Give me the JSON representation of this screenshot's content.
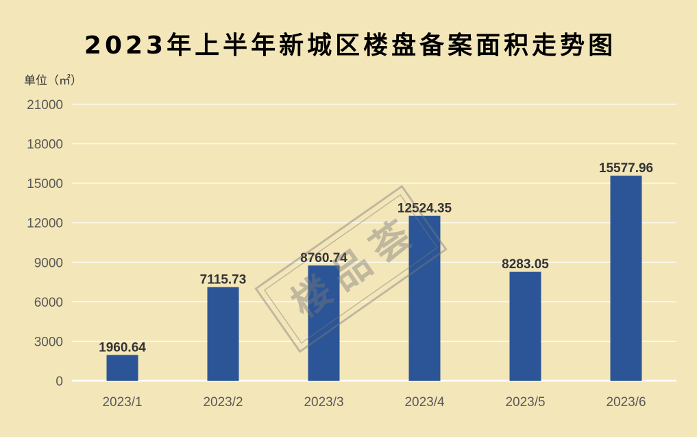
{
  "watermark": {
    "text": "楼品荟"
  },
  "colors": {
    "background": "#F3E6B9",
    "bar": "#2B5597",
    "gridline": "#FFFFFF",
    "tick_text": "#595959",
    "data_label": "#333333",
    "watermark": "#7A7A7A"
  },
  "chart_data": {
    "type": "bar",
    "title": "2023年上半年新城区楼盘备案面积走势图",
    "ylabel": "单位（㎡）",
    "categories": [
      "2023/1",
      "2023/2",
      "2023/3",
      "2023/4",
      "2023/5",
      "2023/6"
    ],
    "values": [
      1960.64,
      7115.73,
      8760.74,
      12524.35,
      8283.05,
      15577.96
    ],
    "ylim": [
      0,
      21000
    ],
    "yticks": [
      0,
      3000,
      6000,
      9000,
      12000,
      15000,
      18000,
      21000
    ],
    "grid": true,
    "legend": false,
    "data_labels": true
  }
}
